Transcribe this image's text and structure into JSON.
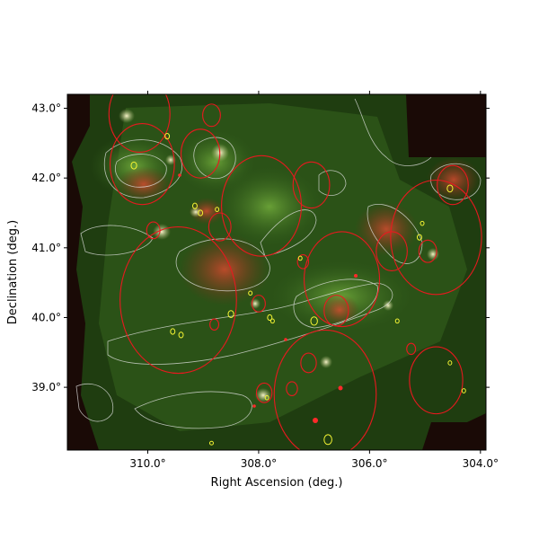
{
  "chart_data": {
    "type": "scatter",
    "xlabel": "Right Ascension (deg.)",
    "ylabel": "Declination (deg.)",
    "xlim": [
      311.45,
      303.9
    ],
    "ylim": [
      38.1,
      43.2
    ],
    "xticks": [
      310,
      308,
      306,
      304
    ],
    "xtick_labels": [
      "310.0°",
      "308.0°",
      "306.0°",
      "304.0°"
    ],
    "yticks": [
      39,
      40,
      41,
      42,
      43
    ],
    "ytick_labels": [
      "39.0°",
      "40.0°",
      "41.0°",
      "42.0°",
      "43.0°"
    ],
    "grid": false,
    "background_image": "infrared mosaic (red/green composite) with white contour overlay",
    "colors": {
      "large_circles": "#e8191f",
      "small_circles": "#f4f433",
      "contours": "#e6e6e6",
      "red_dots": "#ff2a2a"
    },
    "series": [
      {
        "marker": "red circles",
        "points": [
          {
            "ra": 310.15,
            "dec": 42.92,
            "r": 0.55
          },
          {
            "ra": 310.1,
            "dec": 42.2,
            "r": 0.58
          },
          {
            "ra": 309.05,
            "dec": 42.35,
            "r": 0.35
          },
          {
            "ra": 308.85,
            "dec": 42.9,
            "r": 0.16
          },
          {
            "ra": 307.95,
            "dec": 41.6,
            "r": 0.72
          },
          {
            "ra": 307.05,
            "dec": 41.9,
            "r": 0.33
          },
          {
            "ra": 308.7,
            "dec": 41.3,
            "r": 0.2
          },
          {
            "ra": 309.9,
            "dec": 41.25,
            "r": 0.12
          },
          {
            "ra": 309.45,
            "dec": 40.25,
            "r": 1.05
          },
          {
            "ra": 306.5,
            "dec": 40.55,
            "r": 0.68
          },
          {
            "ra": 304.8,
            "dec": 41.15,
            "r": 0.82
          },
          {
            "ra": 304.5,
            "dec": 41.9,
            "r": 0.28
          },
          {
            "ra": 305.6,
            "dec": 40.95,
            "r": 0.28
          },
          {
            "ra": 304.95,
            "dec": 40.95,
            "r": 0.16
          },
          {
            "ra": 306.6,
            "dec": 40.1,
            "r": 0.22
          },
          {
            "ra": 306.8,
            "dec": 38.9,
            "r": 0.92
          },
          {
            "ra": 304.8,
            "dec": 39.1,
            "r": 0.48
          },
          {
            "ra": 307.1,
            "dec": 39.35,
            "r": 0.14
          },
          {
            "ra": 307.2,
            "dec": 40.8,
            "r": 0.1
          },
          {
            "ra": 307.9,
            "dec": 38.92,
            "r": 0.14
          },
          {
            "ra": 307.4,
            "dec": 38.98,
            "r": 0.1
          },
          {
            "ra": 308.8,
            "dec": 39.9,
            "r": 0.08
          },
          {
            "ra": 305.25,
            "dec": 39.55,
            "r": 0.08
          },
          {
            "ra": 308.0,
            "dec": 40.2,
            "r": 0.12
          }
        ]
      },
      {
        "marker": "yellow circles",
        "points": [
          {
            "ra": 309.65,
            "dec": 42.6,
            "r": 0.04
          },
          {
            "ra": 310.25,
            "dec": 42.18,
            "r": 0.05
          },
          {
            "ra": 309.15,
            "dec": 41.6,
            "r": 0.04
          },
          {
            "ra": 309.05,
            "dec": 41.5,
            "r": 0.04
          },
          {
            "ra": 308.75,
            "dec": 41.55,
            "r": 0.03
          },
          {
            "ra": 305.1,
            "dec": 41.15,
            "r": 0.04
          },
          {
            "ra": 305.05,
            "dec": 41.35,
            "r": 0.03
          },
          {
            "ra": 304.55,
            "dec": 41.85,
            "r": 0.05
          },
          {
            "ra": 308.5,
            "dec": 40.05,
            "r": 0.05
          },
          {
            "ra": 308.15,
            "dec": 40.35,
            "r": 0.03
          },
          {
            "ra": 307.8,
            "dec": 40.0,
            "r": 0.04
          },
          {
            "ra": 307.75,
            "dec": 39.95,
            "r": 0.03
          },
          {
            "ra": 309.55,
            "dec": 39.8,
            "r": 0.04
          },
          {
            "ra": 309.4,
            "dec": 39.75,
            "r": 0.04
          },
          {
            "ra": 307.0,
            "dec": 39.95,
            "r": 0.06
          },
          {
            "ra": 306.75,
            "dec": 38.25,
            "r": 0.07
          },
          {
            "ra": 305.5,
            "dec": 39.95,
            "r": 0.03
          },
          {
            "ra": 304.3,
            "dec": 38.95,
            "r": 0.03
          },
          {
            "ra": 304.55,
            "dec": 39.35,
            "r": 0.03
          },
          {
            "ra": 307.25,
            "dec": 40.85,
            "r": 0.03
          },
          {
            "ra": 307.85,
            "dec": 38.85,
            "r": 0.03
          },
          {
            "ra": 308.85,
            "dec": 38.2,
            "r": 0.02
          }
        ]
      }
    ]
  }
}
